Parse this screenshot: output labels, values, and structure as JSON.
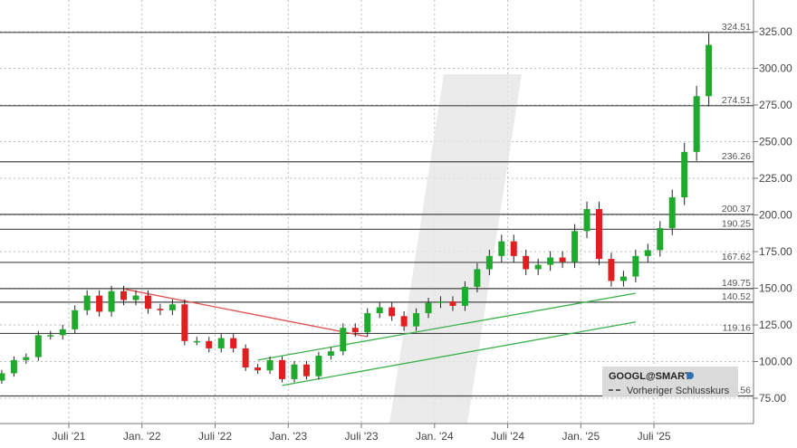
{
  "chart_data": {
    "type": "candlestick",
    "symbol": "GOOGL@SMART",
    "legend": {
      "title": "GOOGL@SMART",
      "items": [
        "Vorheriger Schlusskurs"
      ],
      "placement": "bottom-right"
    },
    "x_tick_labels": [
      "Juli '21",
      "Jan. '22",
      "Juli '22",
      "Jan. '23",
      "Juli '23",
      "Jan. '24",
      "Juli '24",
      "Jan. '25",
      "Juli '25"
    ],
    "x_tick_months": [
      "2021-07",
      "2022-01",
      "2022-07",
      "2023-01",
      "2023-07",
      "2024-01",
      "2024-07",
      "2025-01",
      "2025-07"
    ],
    "y_ticks": [
      "75.00",
      "100.00",
      "125.00",
      "150.00",
      "175.00",
      "200.00",
      "225.00",
      "250.00",
      "275.00",
      "300.00",
      "325.00"
    ],
    "ylim": [
      62,
      345
    ],
    "grid": true,
    "months": [
      "2021-01",
      "2021-02",
      "2021-03",
      "2021-04",
      "2021-05",
      "2021-06",
      "2021-07",
      "2021-08",
      "2021-09",
      "2021-10",
      "2021-11",
      "2021-12",
      "2022-01",
      "2022-02",
      "2022-03",
      "2022-04",
      "2022-05",
      "2022-06",
      "2022-07",
      "2022-08",
      "2022-09",
      "2022-10",
      "2022-11",
      "2022-12",
      "2023-01",
      "2023-02",
      "2023-03",
      "2023-04",
      "2023-05",
      "2023-06",
      "2023-07",
      "2023-08",
      "2023-09",
      "2023-10",
      "2023-11",
      "2023-12",
      "2024-01",
      "2024-02",
      "2024-03",
      "2024-04",
      "2024-05",
      "2024-06",
      "2024-07",
      "2024-08",
      "2024-09",
      "2024-10",
      "2024-11",
      "2024-12",
      "2025-01",
      "2025-02",
      "2025-03",
      "2025-04",
      "2025-05",
      "2025-06",
      "2025-07",
      "2025-08",
      "2025-09",
      "2025-10",
      "2025-11"
    ],
    "close": [
      92,
      101,
      103,
      118,
      118,
      122,
      135,
      145,
      134,
      148,
      142,
      145,
      136,
      135,
      139,
      114,
      114,
      109,
      116,
      109,
      96,
      94,
      101,
      88,
      98,
      90,
      104,
      107,
      123,
      120,
      133,
      137,
      131,
      124,
      133,
      140,
      141,
      138,
      151,
      163,
      172,
      182,
      172,
      163,
      166,
      171,
      168,
      189,
      204,
      170,
      155,
      158,
      172,
      176,
      191,
      212,
      243,
      281,
      316
    ],
    "first_open": 87,
    "levels": [
      {
        "value": 324.51,
        "label": "324.51"
      },
      {
        "value": 274.51,
        "label": "274.51"
      },
      {
        "value": 236.26,
        "label": "236.26"
      },
      {
        "value": 200.37,
        "label": "200.37"
      },
      {
        "value": 190.25,
        "label": "190.25"
      },
      {
        "value": 167.62,
        "label": "167.62"
      },
      {
        "value": 149.75,
        "label": "149.75"
      },
      {
        "value": 140.52,
        "label": "140.52"
      },
      {
        "value": 119.16,
        "label": "119.16"
      },
      {
        "value": 76.56,
        "label": "76.56",
        "kind": "Vorheriger Schlusskurs"
      }
    ],
    "trendlines": [
      {
        "color": "#e05050",
        "from": [
          "2021-11",
          149.5
        ],
        "to": [
          "2023-07",
          117
        ]
      },
      {
        "color": "#3cb04a",
        "from": [
          "2022-10",
          101
        ],
        "to": [
          "2025-05",
          146.6
        ]
      },
      {
        "color": "#3cb04a",
        "from": [
          "2022-12",
          83.7
        ],
        "to": [
          "2025-05",
          127
        ]
      }
    ],
    "colors": {
      "up": "#1faa2e",
      "down": "#e02020",
      "level": "#444444",
      "grid": "#bdbdbd"
    }
  }
}
